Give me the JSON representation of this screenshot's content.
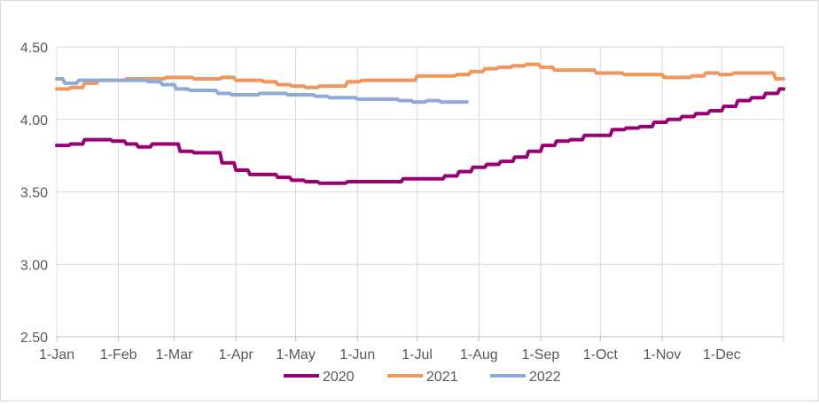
{
  "chart_data": {
    "type": "line",
    "title": "",
    "xlabel": "",
    "ylabel": "",
    "ylim": [
      2.5,
      4.5
    ],
    "y_ticks": [
      "4.50",
      "4.00",
      "3.50",
      "3.00",
      "2.50"
    ],
    "x_tick_labels": [
      "1-Jan",
      "1-Feb",
      "1-Mar",
      "1-Apr",
      "1-May",
      "1-Jun",
      "1-Jul",
      "1-Aug",
      "1-Sep",
      "1-Oct",
      "1-Nov",
      "1-Dec"
    ],
    "x_tick_days": [
      0,
      31,
      59,
      90,
      120,
      151,
      181,
      212,
      243,
      273,
      304,
      334
    ],
    "grid": true,
    "legend_position": "bottom",
    "series": [
      {
        "name": "2020",
        "color": "#990073",
        "points": [
          [
            0,
            3.82
          ],
          [
            6,
            3.82
          ],
          [
            7,
            3.83
          ],
          [
            13,
            3.83
          ],
          [
            14,
            3.86
          ],
          [
            27,
            3.86
          ],
          [
            28,
            3.85
          ],
          [
            34,
            3.85
          ],
          [
            35,
            3.83
          ],
          [
            40,
            3.83
          ],
          [
            41,
            3.81
          ],
          [
            47,
            3.81
          ],
          [
            48,
            3.83
          ],
          [
            61,
            3.83
          ],
          [
            62,
            3.78
          ],
          [
            68,
            3.78
          ],
          [
            69,
            3.77
          ],
          [
            82,
            3.77
          ],
          [
            83,
            3.7
          ],
          [
            89,
            3.7
          ],
          [
            90,
            3.65
          ],
          [
            96,
            3.65
          ],
          [
            97,
            3.62
          ],
          [
            110,
            3.62
          ],
          [
            111,
            3.6
          ],
          [
            117,
            3.6
          ],
          [
            118,
            3.58
          ],
          [
            124,
            3.58
          ],
          [
            125,
            3.57
          ],
          [
            131,
            3.57
          ],
          [
            132,
            3.56
          ],
          [
            145,
            3.56
          ],
          [
            146,
            3.57
          ],
          [
            173,
            3.57
          ],
          [
            174,
            3.59
          ],
          [
            194,
            3.59
          ],
          [
            195,
            3.61
          ],
          [
            201,
            3.61
          ],
          [
            202,
            3.64
          ],
          [
            208,
            3.64
          ],
          [
            209,
            3.67
          ],
          [
            215,
            3.67
          ],
          [
            216,
            3.69
          ],
          [
            222,
            3.69
          ],
          [
            223,
            3.71
          ],
          [
            229,
            3.71
          ],
          [
            230,
            3.74
          ],
          [
            236,
            3.74
          ],
          [
            237,
            3.78
          ],
          [
            243,
            3.78
          ],
          [
            244,
            3.82
          ],
          [
            250,
            3.82
          ],
          [
            251,
            3.85
          ],
          [
            257,
            3.85
          ],
          [
            258,
            3.86
          ],
          [
            264,
            3.86
          ],
          [
            265,
            3.89
          ],
          [
            278,
            3.89
          ],
          [
            279,
            3.93
          ],
          [
            285,
            3.93
          ],
          [
            286,
            3.94
          ],
          [
            292,
            3.94
          ],
          [
            293,
            3.95
          ],
          [
            299,
            3.95
          ],
          [
            300,
            3.98
          ],
          [
            306,
            3.98
          ],
          [
            307,
            4.0
          ],
          [
            313,
            4.0
          ],
          [
            314,
            4.02
          ],
          [
            320,
            4.02
          ],
          [
            321,
            4.04
          ],
          [
            327,
            4.04
          ],
          [
            328,
            4.06
          ],
          [
            334,
            4.06
          ],
          [
            335,
            4.09
          ],
          [
            341,
            4.09
          ],
          [
            342,
            4.13
          ],
          [
            348,
            4.13
          ],
          [
            349,
            4.15
          ],
          [
            355,
            4.15
          ],
          [
            356,
            4.18
          ],
          [
            362,
            4.18
          ],
          [
            363,
            4.21
          ],
          [
            365,
            4.21
          ]
        ]
      },
      {
        "name": "2021",
        "color": "#f0965a",
        "points": [
          [
            0,
            4.21
          ],
          [
            6,
            4.21
          ],
          [
            7,
            4.22
          ],
          [
            13,
            4.22
          ],
          [
            14,
            4.25
          ],
          [
            20,
            4.25
          ],
          [
            21,
            4.27
          ],
          [
            34,
            4.27
          ],
          [
            35,
            4.28
          ],
          [
            54,
            4.28
          ],
          [
            55,
            4.29
          ],
          [
            68,
            4.29
          ],
          [
            69,
            4.28
          ],
          [
            82,
            4.28
          ],
          [
            83,
            4.29
          ],
          [
            89,
            4.29
          ],
          [
            90,
            4.27
          ],
          [
            103,
            4.27
          ],
          [
            104,
            4.26
          ],
          [
            110,
            4.26
          ],
          [
            111,
            4.24
          ],
          [
            117,
            4.24
          ],
          [
            118,
            4.23
          ],
          [
            124,
            4.23
          ],
          [
            125,
            4.22
          ],
          [
            131,
            4.22
          ],
          [
            132,
            4.23
          ],
          [
            145,
            4.23
          ],
          [
            146,
            4.26
          ],
          [
            152,
            4.26
          ],
          [
            153,
            4.27
          ],
          [
            180,
            4.27
          ],
          [
            181,
            4.3
          ],
          [
            200,
            4.3
          ],
          [
            201,
            4.31
          ],
          [
            207,
            4.31
          ],
          [
            208,
            4.33
          ],
          [
            214,
            4.33
          ],
          [
            215,
            4.35
          ],
          [
            221,
            4.35
          ],
          [
            222,
            4.36
          ],
          [
            228,
            4.36
          ],
          [
            229,
            4.37
          ],
          [
            235,
            4.37
          ],
          [
            236,
            4.38
          ],
          [
            242,
            4.38
          ],
          [
            243,
            4.36
          ],
          [
            249,
            4.36
          ],
          [
            250,
            4.34
          ],
          [
            270,
            4.34
          ],
          [
            271,
            4.32
          ],
          [
            284,
            4.32
          ],
          [
            285,
            4.31
          ],
          [
            304,
            4.31
          ],
          [
            305,
            4.29
          ],
          [
            318,
            4.29
          ],
          [
            319,
            4.3
          ],
          [
            325,
            4.3
          ],
          [
            326,
            4.32
          ],
          [
            332,
            4.32
          ],
          [
            333,
            4.31
          ],
          [
            339,
            4.31
          ],
          [
            340,
            4.32
          ],
          [
            360,
            4.32
          ],
          [
            361,
            4.28
          ],
          [
            365,
            4.28
          ]
        ]
      },
      {
        "name": "2022",
        "color": "#8eaadb",
        "points": [
          [
            0,
            4.28
          ],
          [
            3,
            4.28
          ],
          [
            4,
            4.25
          ],
          [
            10,
            4.25
          ],
          [
            11,
            4.27
          ],
          [
            45,
            4.27
          ],
          [
            46,
            4.26
          ],
          [
            52,
            4.26
          ],
          [
            53,
            4.24
          ],
          [
            59,
            4.24
          ],
          [
            60,
            4.21
          ],
          [
            66,
            4.21
          ],
          [
            67,
            4.2
          ],
          [
            80,
            4.2
          ],
          [
            81,
            4.18
          ],
          [
            87,
            4.18
          ],
          [
            88,
            4.17
          ],
          [
            101,
            4.17
          ],
          [
            102,
            4.18
          ],
          [
            115,
            4.18
          ],
          [
            116,
            4.17
          ],
          [
            129,
            4.17
          ],
          [
            130,
            4.16
          ],
          [
            136,
            4.16
          ],
          [
            137,
            4.15
          ],
          [
            150,
            4.15
          ],
          [
            151,
            4.14
          ],
          [
            171,
            4.14
          ],
          [
            172,
            4.13
          ],
          [
            178,
            4.13
          ],
          [
            179,
            4.12
          ],
          [
            185,
            4.12
          ],
          [
            186,
            4.13
          ],
          [
            192,
            4.13
          ],
          [
            193,
            4.12
          ],
          [
            206,
            4.12
          ]
        ]
      }
    ]
  }
}
